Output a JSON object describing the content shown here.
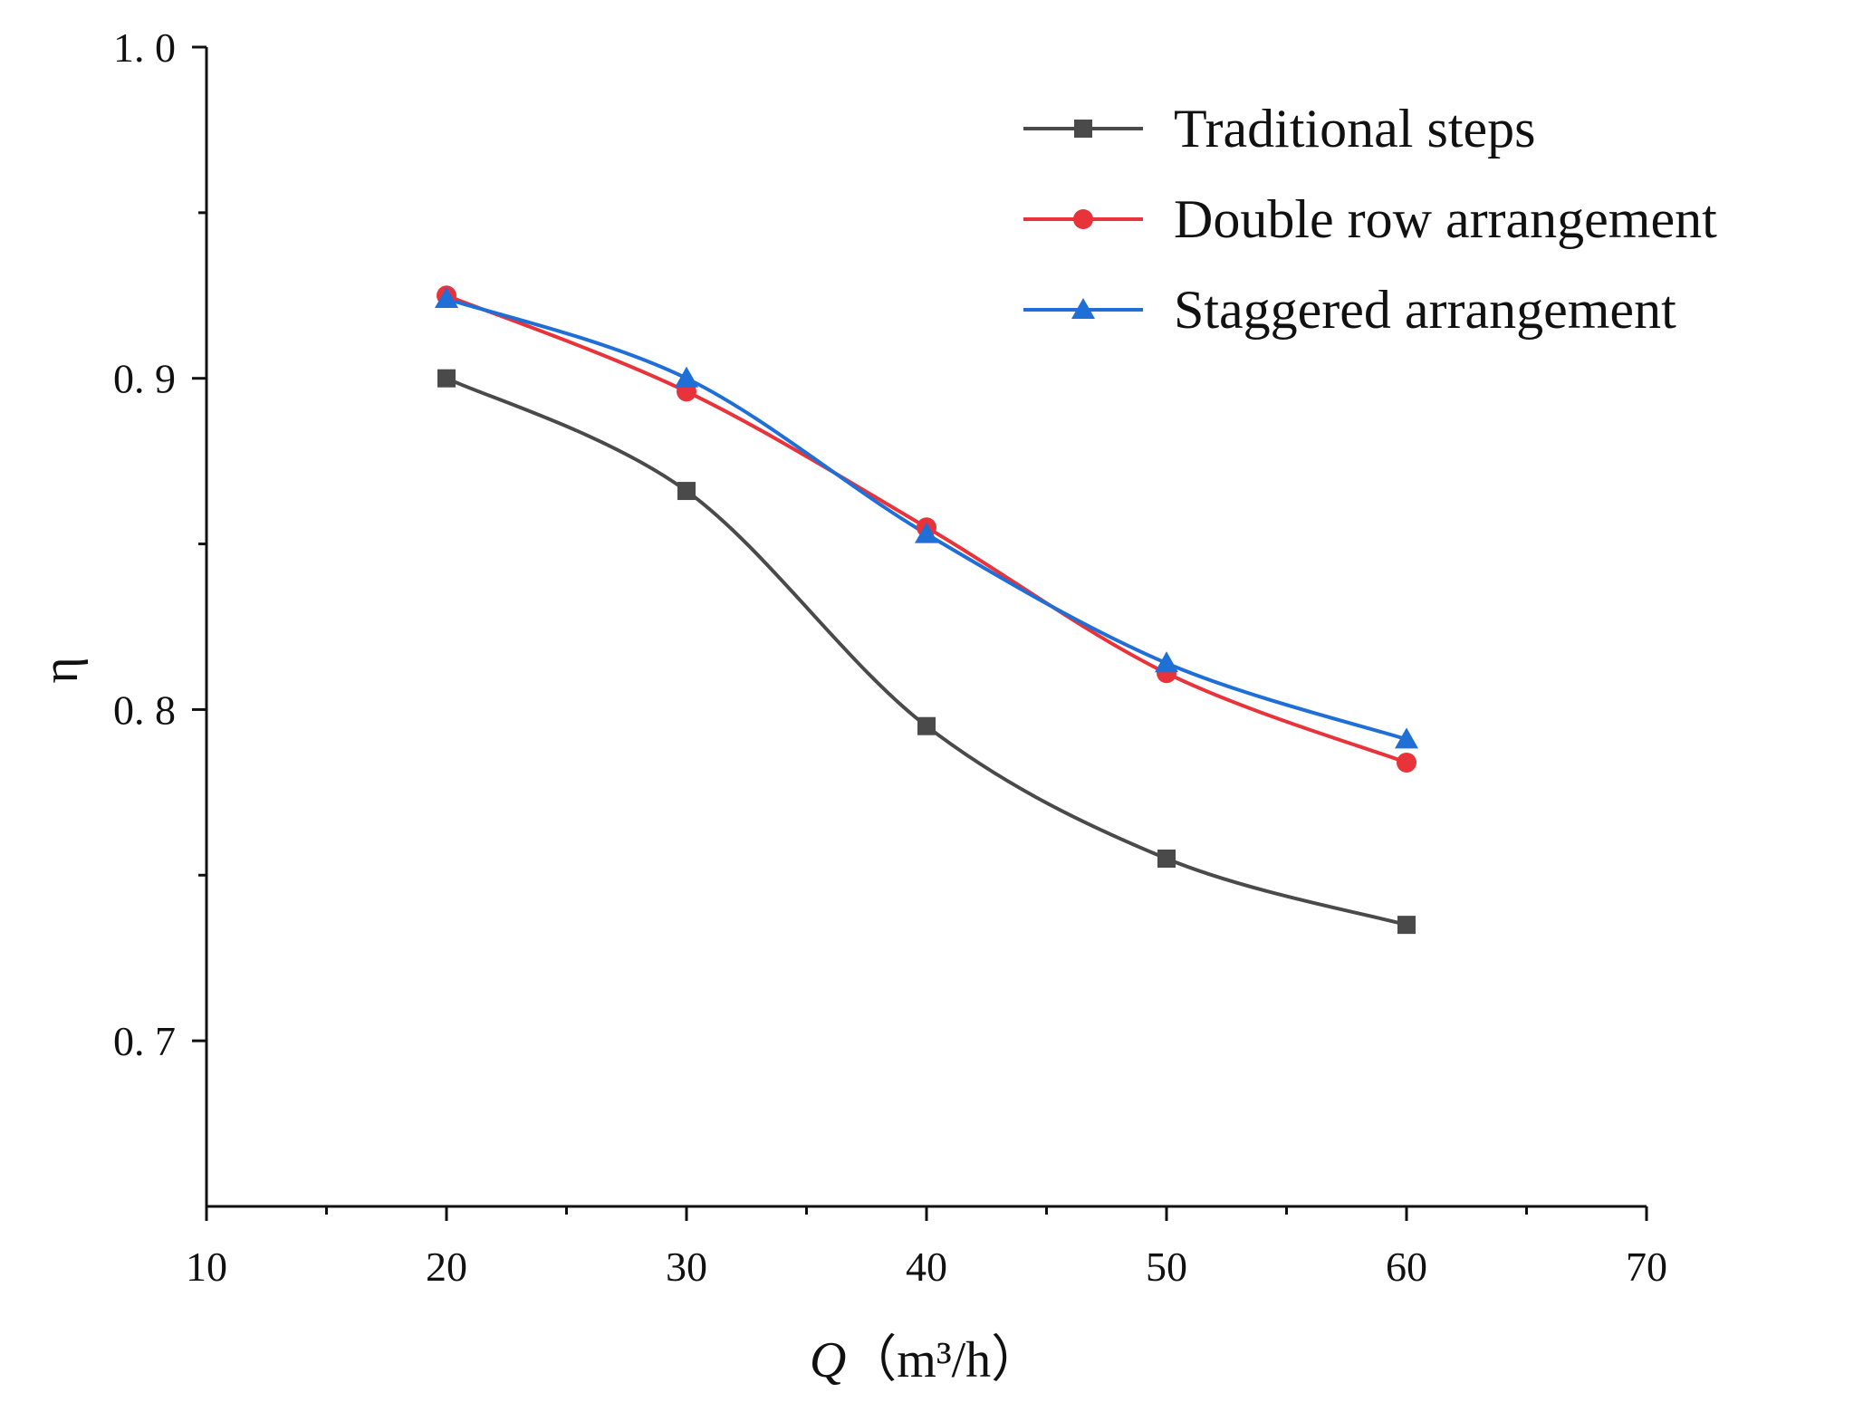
{
  "chart_data": {
    "type": "line",
    "title": "",
    "xlabel": {
      "symbol": "Q",
      "unit": "（m³/h）"
    },
    "ylabel": "η",
    "xlim": [
      10,
      70
    ],
    "ylim": [
      0.65,
      1.0
    ],
    "x_ticks": [
      10,
      20,
      30,
      40,
      50,
      60,
      70
    ],
    "x_tick_labels": [
      "10",
      "20",
      "30",
      "40",
      "50",
      "60",
      "70"
    ],
    "y_ticks": [
      0.7,
      0.8,
      0.9,
      1.0
    ],
    "y_tick_labels": [
      "0. 7",
      "0. 8",
      "0. 9",
      "1. 0"
    ],
    "legend_position": "top-right",
    "grid": false,
    "x": [
      20,
      30,
      40,
      50,
      60
    ],
    "series": [
      {
        "name": "Traditional steps",
        "color": "#4a4a4a",
        "marker": "square",
        "values": [
          0.9,
          0.866,
          0.795,
          0.755,
          0.735
        ]
      },
      {
        "name": "Double row arrangement",
        "color": "#e8333b",
        "marker": "circle",
        "values": [
          0.925,
          0.896,
          0.855,
          0.811,
          0.784
        ]
      },
      {
        "name": "Staggered arrangement",
        "color": "#1f6fd6",
        "marker": "triangle",
        "values": [
          0.924,
          0.9,
          0.853,
          0.814,
          0.791
        ]
      }
    ]
  }
}
